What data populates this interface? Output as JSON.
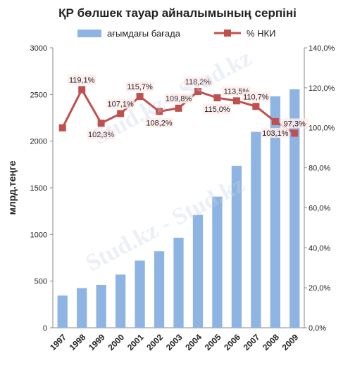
{
  "chart_data": {
    "type": "bar",
    "title": "ҚР бөлшек тауар айналымының серпіні",
    "xlabel": "",
    "ylabel": "млрд.теңге",
    "categories": [
      "1997",
      "1998",
      "1999",
      "2000",
      "2001",
      "2002",
      "2003",
      "2004",
      "2005",
      "2006",
      "2007",
      "2008",
      "2009"
    ],
    "series": [
      {
        "name": "ағымдағы бағада",
        "type": "bar",
        "axis": "left",
        "color": "#8eb4e3",
        "values": [
          345,
          425,
          460,
          570,
          720,
          820,
          965,
          1210,
          1405,
          1735,
          2100,
          2480,
          2555
        ]
      },
      {
        "name": "% НКИ",
        "type": "line",
        "axis": "right",
        "color": "#c0504d",
        "values": [
          100.0,
          119.1,
          102.3,
          107.1,
          115.7,
          108.2,
          109.8,
          118.2,
          115.0,
          113.5,
          110.7,
          103.1,
          97.3
        ],
        "labels": [
          "",
          "119,1%",
          "102,3%",
          "107,1%",
          "115,7%",
          "108,2%",
          "109,8%",
          "118,2%",
          "115,0%",
          "113,5%",
          "110,7%",
          "103,1%",
          "97,3%"
        ]
      }
    ],
    "ylim": [
      0,
      3000
    ],
    "y_ticks": [
      "0",
      "500",
      "1000",
      "1500",
      "2000",
      "2500",
      "3000"
    ],
    "y2lim": [
      0,
      140
    ],
    "y2_ticks": [
      "0,0%",
      "20,0%",
      "40,0%",
      "60,0%",
      "80,0%",
      "100,0%",
      "120,0%",
      "140,0%"
    ],
    "grid": false,
    "legend_position": "top"
  },
  "watermark": "Stud.kz - Stud.kz"
}
